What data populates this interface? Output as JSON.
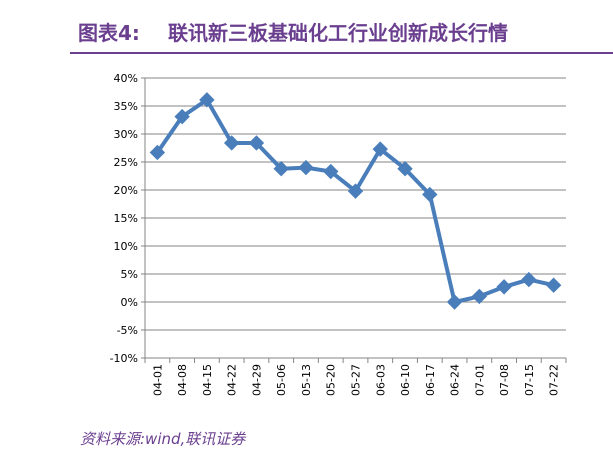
{
  "figure": {
    "label": "图表4:",
    "title": "联讯新三板基础化工行业创新成长行情",
    "source": "资料来源:wind,联讯证券",
    "accent_color": "#6b3f8f"
  },
  "chart_data": {
    "type": "line",
    "title": "",
    "xlabel": "",
    "ylabel": "",
    "categories": [
      "04-01",
      "04-08",
      "04-15",
      "04-22",
      "04-29",
      "05-06",
      "05-13",
      "05-20",
      "05-27",
      "06-03",
      "06-10",
      "06-17",
      "06-24",
      "07-01",
      "07-08",
      "07-15",
      "07-22"
    ],
    "series": [
      {
        "values": [
          26.7,
          33.1,
          36.1,
          28.4,
          28.4,
          23.8,
          24.0,
          23.3,
          19.8,
          27.3,
          23.8,
          19.2,
          0.0,
          1.0,
          2.7,
          4.0,
          3.0
        ],
        "color": "#4a7ebb"
      }
    ],
    "ylim": [
      -10,
      40
    ],
    "yticks": [
      "-10%",
      "-5%",
      "0%",
      "5%",
      "10%",
      "15%",
      "20%",
      "25%",
      "30%",
      "35%",
      "40%"
    ],
    "ytick_values": [
      -10,
      -5,
      0,
      5,
      10,
      15,
      20,
      25,
      30,
      35,
      40
    ],
    "grid": true,
    "marker": "diamond",
    "legend": "none"
  }
}
